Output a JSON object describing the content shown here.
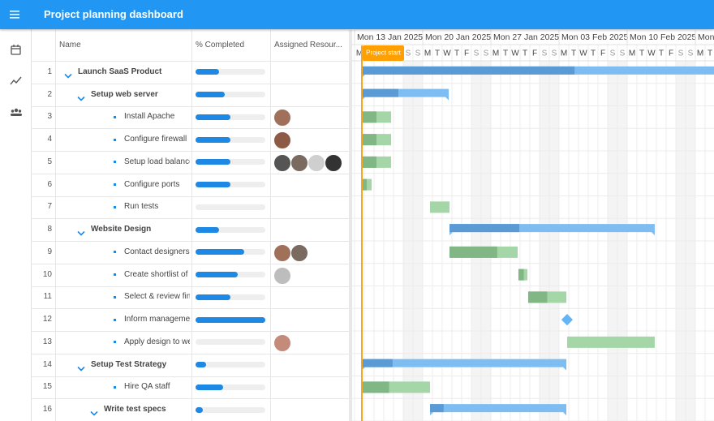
{
  "header": {
    "title": "Project planning dashboard"
  },
  "grid": {
    "columns": [
      "Name",
      "% Completed",
      "Assigned Resour..."
    ],
    "tasks": [
      {
        "id": 1,
        "name": "Launch SaaS Product",
        "level": 0,
        "parent": true,
        "percent": 34,
        "start": 0.75,
        "end": 65
      },
      {
        "id": 2,
        "name": "Setup web server",
        "level": 1,
        "parent": true,
        "percent": 42,
        "start": 0.75,
        "end": 9.67
      },
      {
        "id": 3,
        "name": "Install Apache",
        "level": 2,
        "parent": false,
        "percent": 50,
        "start": 0.75,
        "end": 3.75
      },
      {
        "id": 4,
        "name": "Configure firewall",
        "level": 2,
        "parent": false,
        "percent": 50,
        "start": 0.75,
        "end": 3.75
      },
      {
        "id": 5,
        "name": "Setup load balancer",
        "level": 2,
        "parent": false,
        "percent": 50,
        "start": 0.75,
        "end": 3.75
      },
      {
        "id": 6,
        "name": "Configure ports",
        "level": 2,
        "parent": false,
        "percent": 50,
        "start": 0.75,
        "end": 1.75
      },
      {
        "id": 7,
        "name": "Run tests",
        "level": 2,
        "parent": false,
        "percent": 0,
        "start": 7.75,
        "end": 9.75
      },
      {
        "id": 8,
        "name": "Website Design",
        "level": 1,
        "parent": true,
        "percent": 34,
        "start": 9.75,
        "end": 30.83
      },
      {
        "id": 9,
        "name": "Contact designers",
        "level": 2,
        "parent": false,
        "percent": 70,
        "start": 9.75,
        "end": 16.75
      },
      {
        "id": 10,
        "name": "Create shortlist of thre...",
        "level": 2,
        "parent": false,
        "percent": 60,
        "start": 16.83,
        "end": 17.75
      },
      {
        "id": 11,
        "name": "Select & review final d...",
        "level": 2,
        "parent": false,
        "percent": 50,
        "start": 17.83,
        "end": 21.75
      },
      {
        "id": 12,
        "name": "Inform management a...",
        "level": 2,
        "parent": false,
        "percent": 100,
        "start": 21.83,
        "end": 21.83
      },
      {
        "id": 13,
        "name": "Apply design to web si...",
        "level": 2,
        "parent": false,
        "percent": 0,
        "start": 21.83,
        "end": 30.83
      },
      {
        "id": 14,
        "name": "Setup Test Strategy",
        "level": 1,
        "parent": true,
        "percent": 15,
        "start": 0.75,
        "end": 21.75
      },
      {
        "id": 15,
        "name": "Hire QA staff",
        "level": 2,
        "parent": false,
        "percent": 40,
        "start": 0.75,
        "end": 7.75
      },
      {
        "id": 16,
        "name": "Write test specs",
        "level": 2,
        "parent": true,
        "percent": 10,
        "start": 7.75,
        "end": 21.75
      }
    ]
  },
  "timeline": {
    "weeks": [
      "Mon 13 Jan 2025",
      "Mon 20 Jan 2025",
      "Mon 27 Jan 2025",
      "Mon 03 Feb 2025",
      "Mon 10 Feb 2025",
      "Mon"
    ],
    "day_letters": [
      "M",
      "T",
      "W",
      "T",
      "F",
      "S",
      "S"
    ],
    "project_start": {
      "label": "Project start",
      "day": 0.75
    }
  }
}
